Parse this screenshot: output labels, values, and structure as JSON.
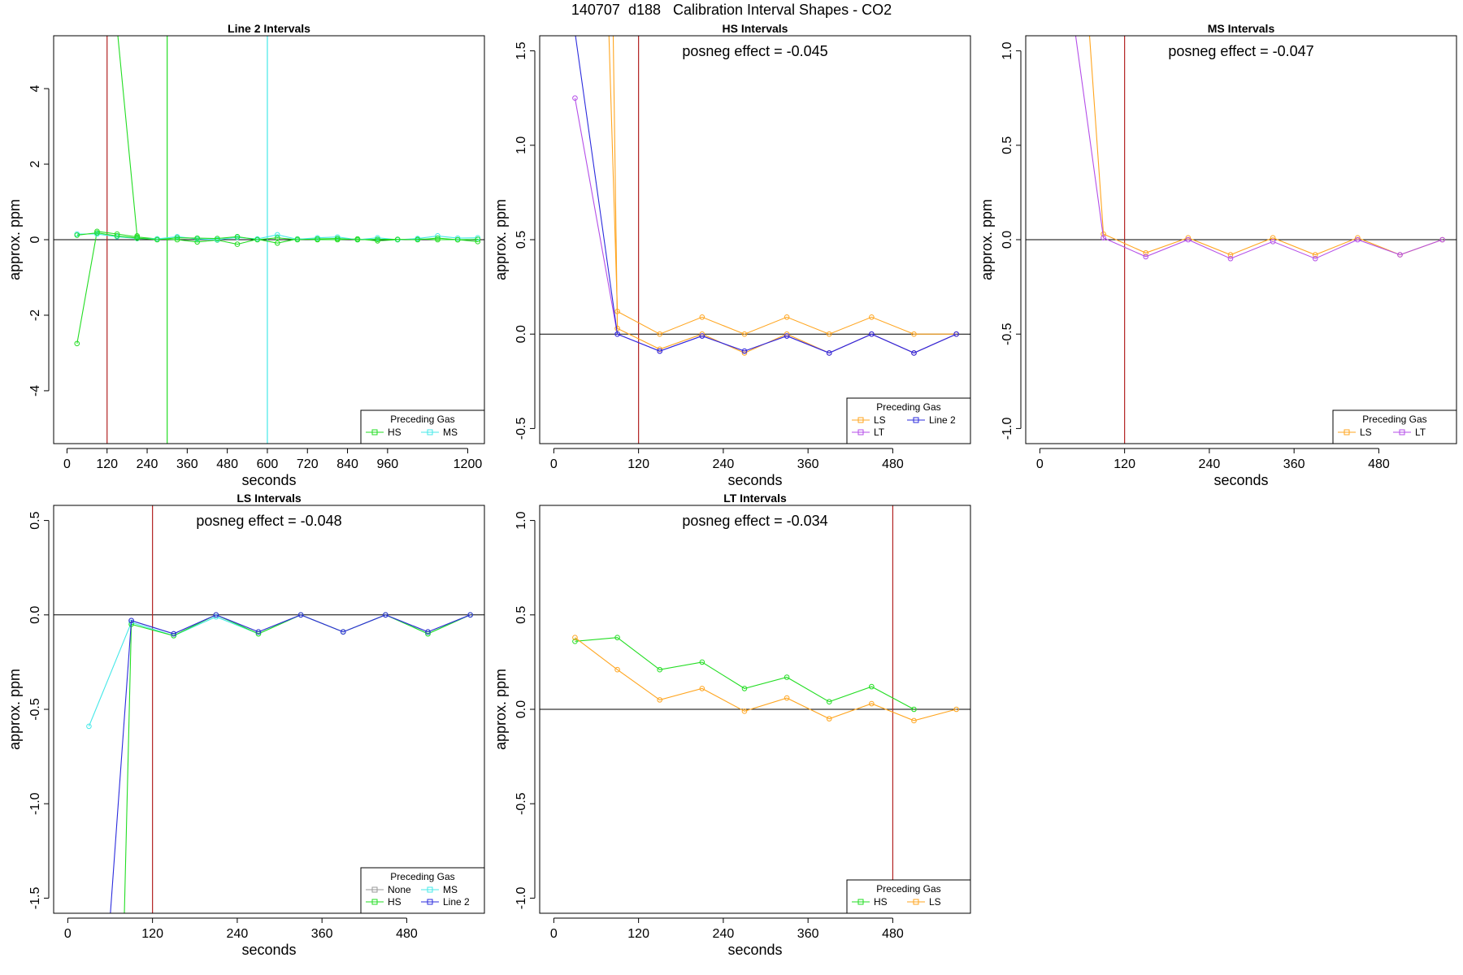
{
  "figure_title": "140707  d188   Calibration Interval Shapes - CO2",
  "colors": {
    "HS": "#22dd22",
    "MS": "#44e8e8",
    "LS": "#ffa51f",
    "LT": "#b44ee8",
    "Line 2": "#2b2bdd",
    "None": "#999999",
    "vline_red": "#b22222",
    "axis": "#000000"
  },
  "chart_data": [
    {
      "type": "line",
      "title": "Line 2 Intervals",
      "xlabel": "seconds",
      "ylabel": "approx. ppm",
      "xlim": [
        -40,
        1250
      ],
      "ylim": [
        -5.4,
        5.4
      ],
      "xticks": [
        0,
        120,
        240,
        360,
        480,
        600,
        720,
        840,
        960,
        1200
      ],
      "yticks": [
        -4,
        -2,
        0,
        2,
        4
      ],
      "hline": 0,
      "vlines": [
        {
          "x": 120,
          "color": "#b22222"
        },
        {
          "x": 300,
          "color": "#22dd22"
        },
        {
          "x": 600,
          "color": "#44e8e8"
        }
      ],
      "legend": {
        "title": "Preceding Gas",
        "position": "bottom-right",
        "entries": [
          "HS",
          "MS"
        ],
        "columns": 2
      },
      "series": [
        {
          "name": "HS",
          "color_key": "HS",
          "x": [
            150,
            210
          ],
          "y": [
            5.6,
            0.1
          ]
        },
        {
          "name": "HS",
          "color_key": "HS",
          "x": [
            30,
            90,
            150,
            210,
            270,
            330,
            390,
            450,
            510,
            570,
            630,
            690,
            750,
            810,
            870,
            930,
            990,
            1050,
            1110,
            1170,
            1230
          ],
          "y": [
            -2.75,
            0.22,
            0.15,
            0.07,
            0.02,
            0.0,
            -0.06,
            -0.01,
            -0.12,
            0.01,
            -0.09,
            0.02,
            0.0,
            0.0,
            0.02,
            -0.03,
            0.0,
            0.02,
            0.0,
            0.0,
            -0.05
          ]
        },
        {
          "name": "MS",
          "color_key": "MS",
          "x": [
            30,
            90,
            150,
            210,
            270,
            330,
            390,
            450,
            510,
            570,
            630,
            690,
            750,
            810,
            870,
            930,
            990,
            1050,
            1110,
            1170,
            1230
          ],
          "y": [
            0.15,
            0.15,
            0.08,
            0.03,
            0.02,
            0.08,
            0.02,
            0.0,
            0.06,
            0.02,
            0.13,
            0.01,
            0.05,
            0.07,
            0.0,
            0.05,
            0.0,
            0.03,
            0.1,
            0.04,
            0.05
          ]
        },
        {
          "name": "HS",
          "color_key": "HS",
          "x": [
            30,
            90,
            150,
            210,
            270,
            330,
            390,
            450,
            510,
            570,
            630,
            690,
            750,
            810,
            870,
            930,
            990,
            1050,
            1110,
            1170,
            1230
          ],
          "y": [
            0.12,
            0.18,
            0.1,
            0.04,
            0.0,
            0.05,
            0.04,
            0.03,
            0.08,
            0.0,
            0.05,
            0.0,
            0.02,
            0.03,
            0.0,
            0.01,
            0.01,
            0.0,
            0.04,
            0.0,
            0.01
          ]
        }
      ]
    },
    {
      "type": "line",
      "title": "HS Intervals",
      "annotation": "posneg effect = -0.045",
      "xlabel": "seconds",
      "ylabel": "approx. ppm",
      "xlim": [
        -20,
        590
      ],
      "ylim": [
        -0.58,
        1.58
      ],
      "xticks": [
        0,
        120,
        240,
        360,
        480
      ],
      "yticks": [
        -0.5,
        0.0,
        0.5,
        1.0,
        1.5
      ],
      "hline": 0,
      "vlines": [
        {
          "x": 120,
          "color": "#b22222"
        }
      ],
      "legend": {
        "title": "Preceding Gas",
        "position": "bottom-right",
        "entries": [
          "LS",
          "Line 2",
          "LT"
        ],
        "columns": 2
      },
      "series": [
        {
          "name": "LS",
          "color_key": "LS",
          "x": [
            78,
            90,
            150,
            210,
            270,
            330,
            390,
            450,
            510,
            570
          ],
          "y": [
            1.6,
            0.12,
            0.0,
            0.09,
            0.0,
            0.09,
            0.0,
            0.09,
            0.0,
            0.0
          ]
        },
        {
          "name": "LS",
          "color_key": "LS",
          "x": [
            84,
            90,
            150,
            210,
            270,
            330,
            390,
            450,
            510,
            570
          ],
          "y": [
            1.6,
            0.03,
            -0.08,
            0.0,
            -0.1,
            0.0,
            -0.1,
            0.0,
            -0.1,
            0.0
          ]
        },
        {
          "name": "LT",
          "color_key": "LT",
          "x": [
            30,
            90,
            150,
            210,
            270,
            330,
            390,
            450,
            510,
            570
          ],
          "y": [
            1.25,
            0.0,
            -0.09,
            -0.01,
            -0.09,
            -0.01,
            -0.1,
            0.0,
            -0.1,
            0.0
          ]
        },
        {
          "name": "Line 2",
          "color_key": "Line 2",
          "x": [
            30,
            90,
            150,
            210,
            270,
            330,
            390,
            450,
            510,
            570
          ],
          "y": [
            1.6,
            0.0,
            -0.09,
            -0.01,
            -0.09,
            -0.01,
            -0.1,
            0.0,
            -0.1,
            0.0
          ]
        }
      ]
    },
    {
      "type": "line",
      "title": "MS Intervals",
      "annotation": "posneg effect = -0.047",
      "xlabel": "seconds",
      "ylabel": "approx. ppm",
      "xlim": [
        -20,
        590
      ],
      "ylim": [
        -1.08,
        1.08
      ],
      "xticks": [
        0,
        120,
        240,
        360,
        480
      ],
      "yticks": [
        -1.0,
        -0.5,
        0.0,
        0.5,
        1.0
      ],
      "hline": 0,
      "vlines": [
        {
          "x": 120,
          "color": "#b22222"
        }
      ],
      "legend": {
        "title": "Preceding Gas",
        "position": "bottom-right",
        "entries": [
          "LS",
          "LT"
        ],
        "columns": 2
      },
      "series": [
        {
          "name": "LS",
          "color_key": "LS",
          "x": [
            70,
            90,
            150,
            210,
            270,
            330,
            390,
            450,
            510,
            570
          ],
          "y": [
            1.1,
            0.03,
            -0.07,
            0.01,
            -0.08,
            0.01,
            -0.08,
            0.01,
            -0.08,
            0.0
          ]
        },
        {
          "name": "LT",
          "color_key": "LT",
          "x": [
            50,
            90,
            150,
            210,
            270,
            330,
            390,
            450,
            510,
            570
          ],
          "y": [
            1.1,
            0.01,
            -0.09,
            0.0,
            -0.1,
            -0.01,
            -0.1,
            0.0,
            -0.08,
            0.0
          ]
        }
      ]
    },
    {
      "type": "line",
      "title": "LS Intervals",
      "annotation": "posneg effect = -0.048",
      "xlabel": "seconds",
      "ylabel": "approx. ppm",
      "xlim": [
        -20,
        590
      ],
      "ylim": [
        -1.58,
        0.58
      ],
      "xticks": [
        0,
        120,
        240,
        360,
        480
      ],
      "yticks": [
        -1.5,
        -1.0,
        -0.5,
        0.0,
        0.5
      ],
      "hline": 0,
      "vlines": [
        {
          "x": 120,
          "color": "#b22222"
        }
      ],
      "legend": {
        "title": "Preceding Gas",
        "position": "bottom-right",
        "entries": [
          "None",
          "MS",
          "HS",
          "Line 2"
        ],
        "columns": 2
      },
      "series": [
        {
          "name": "MS",
          "color_key": "MS",
          "x": [
            30,
            90,
            150,
            210,
            270,
            330,
            390,
            450,
            510,
            570
          ],
          "y": [
            -0.59,
            -0.04,
            -0.11,
            -0.01,
            -0.1,
            0.0,
            -0.09,
            0.0,
            -0.1,
            0.0
          ]
        },
        {
          "name": "HS",
          "color_key": "HS",
          "x": [
            80,
            90,
            150,
            210,
            270,
            330,
            390,
            450,
            510,
            570
          ],
          "y": [
            -1.6,
            -0.05,
            -0.11,
            0.0,
            -0.1,
            0.0,
            -0.09,
            0.0,
            -0.1,
            0.0
          ]
        },
        {
          "name": "None",
          "color_key": "None",
          "x": [
            90,
            150,
            210,
            270,
            330,
            390,
            450,
            510,
            570
          ],
          "y": [
            -0.03,
            -0.1,
            0.0,
            -0.09,
            0.0,
            -0.09,
            0.0,
            -0.09,
            0.0
          ]
        },
        {
          "name": "Line 2",
          "color_key": "Line 2",
          "x": [
            60,
            90,
            150,
            210,
            270,
            330,
            390,
            450,
            510,
            570
          ],
          "y": [
            -1.6,
            -0.03,
            -0.1,
            0.0,
            -0.09,
            0.0,
            -0.09,
            0.0,
            -0.09,
            0.0
          ]
        }
      ]
    },
    {
      "type": "line",
      "title": "LT Intervals",
      "annotation": "posneg effect = -0.034",
      "xlabel": "seconds",
      "ylabel": "approx. ppm",
      "xlim": [
        -20,
        590
      ],
      "ylim": [
        -1.08,
        1.08
      ],
      "xticks": [
        0,
        120,
        240,
        360,
        480
      ],
      "yticks": [
        -1.0,
        -0.5,
        0.0,
        0.5,
        1.0
      ],
      "hline": 0,
      "vlines": [
        {
          "x": 480,
          "color": "#b22222"
        }
      ],
      "legend": {
        "title": "Preceding Gas",
        "position": "bottom-right",
        "entries": [
          "HS",
          "LS"
        ],
        "columns": 2
      },
      "series": [
        {
          "name": "HS",
          "color_key": "HS",
          "x": [
            30,
            90,
            150,
            210,
            270,
            330,
            390,
            450,
            510
          ],
          "y": [
            0.36,
            0.38,
            0.21,
            0.25,
            0.11,
            0.17,
            0.04,
            0.12,
            0.0
          ]
        },
        {
          "name": "LS",
          "color_key": "LS",
          "x": [
            30,
            90,
            150,
            210,
            270,
            330,
            390,
            450,
            510,
            570
          ],
          "y": [
            0.38,
            0.21,
            0.05,
            0.11,
            -0.01,
            0.06,
            -0.05,
            0.03,
            -0.06,
            0.0
          ]
        }
      ]
    }
  ]
}
